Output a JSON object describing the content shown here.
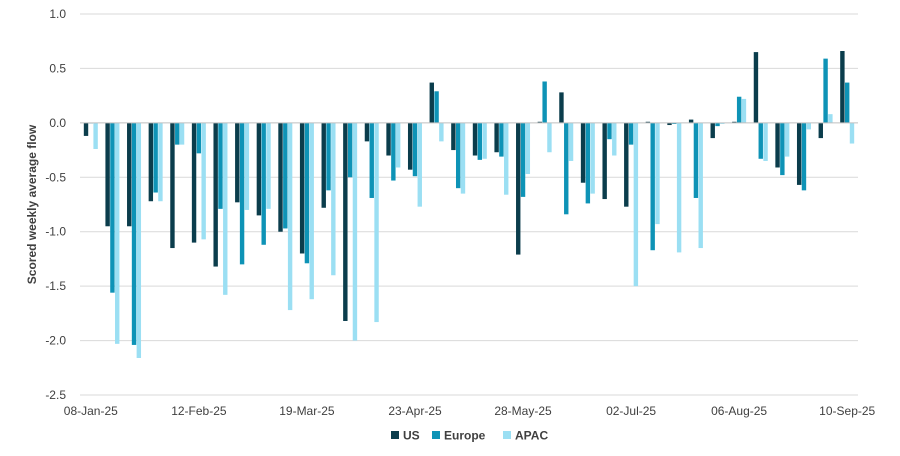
{
  "chart_data": {
    "type": "bar",
    "ylabel": "Scored weekly average flow",
    "ylim": [
      -2.5,
      1.0
    ],
    "yticks": [
      "1.0",
      "0.5",
      "0.0",
      "-0.5",
      "-1.0",
      "-1.5",
      "-2.0",
      "-2.5"
    ],
    "ytick_values": [
      1.0,
      0.5,
      0.0,
      -0.5,
      -1.0,
      -1.5,
      -2.0,
      -2.5
    ],
    "grid": true,
    "legend_position": "bottom",
    "x": [
      "08-Jan-25",
      "15-Jan-25",
      "22-Jan-25",
      "29-Jan-25",
      "05-Feb-25",
      "12-Feb-25",
      "19-Feb-25",
      "26-Feb-25",
      "05-Mar-25",
      "12-Mar-25",
      "19-Mar-25",
      "26-Mar-25",
      "02-Apr-25",
      "09-Apr-25",
      "16-Apr-25",
      "23-Apr-25",
      "30-Apr-25",
      "07-May-25",
      "14-May-25",
      "21-May-25",
      "28-May-25",
      "04-Jun-25",
      "11-Jun-25",
      "18-Jun-25",
      "25-Jun-25",
      "02-Jul-25",
      "09-Jul-25",
      "16-Jul-25",
      "23-Jul-25",
      "30-Jul-25",
      "06-Aug-25",
      "13-Aug-25",
      "20-Aug-25",
      "27-Aug-25",
      "03-Sep-25",
      "10-Sep-25"
    ],
    "x_tick_labels": [
      "08-Jan-25",
      "12-Feb-25",
      "19-Mar-25",
      "23-Apr-25",
      "28-May-25",
      "02-Jul-25",
      "06-Aug-25",
      "10-Sep-25"
    ],
    "series": [
      {
        "name": "US",
        "color": "#0b3d4c",
        "values": [
          -0.12,
          -0.95,
          -0.95,
          -0.72,
          -1.15,
          -1.1,
          -1.32,
          -0.73,
          -0.85,
          -1.0,
          -1.2,
          -0.78,
          -1.82,
          -0.17,
          -0.3,
          -0.43,
          0.37,
          -0.25,
          -0.3,
          -0.27,
          -1.21,
          0.01,
          0.28,
          -0.55,
          -0.7,
          -0.77,
          0.01,
          -0.02,
          0.03,
          -0.14,
          0.01,
          0.65,
          -0.41,
          -0.57,
          -0.14,
          0.66
        ]
      },
      {
        "name": "Europe",
        "color": "#0e93b6",
        "values": [
          0.0,
          -1.56,
          -2.04,
          -0.64,
          -0.2,
          -0.28,
          -0.79,
          -1.3,
          -1.12,
          -0.97,
          -1.29,
          -0.62,
          -0.5,
          -0.69,
          -0.53,
          -0.49,
          0.29,
          -0.6,
          -0.34,
          -0.31,
          -0.68,
          0.38,
          -0.84,
          -0.74,
          -0.15,
          -0.2,
          -1.17,
          -0.01,
          -0.69,
          -0.03,
          0.24,
          -0.33,
          -0.48,
          -0.62,
          0.59,
          0.37
        ]
      },
      {
        "name": "APAC",
        "color": "#9bdff3",
        "values": [
          -0.24,
          -2.03,
          -2.16,
          -0.72,
          -0.2,
          -1.07,
          -1.58,
          -0.8,
          -0.79,
          -1.72,
          -1.62,
          -1.4,
          -2.0,
          -1.83,
          -0.41,
          -0.77,
          -0.17,
          -0.65,
          -0.33,
          -0.66,
          -0.47,
          -0.27,
          -0.35,
          -0.65,
          -0.3,
          -1.5,
          -0.93,
          -1.19,
          -1.15,
          -0.01,
          0.22,
          -0.35,
          -0.31,
          -0.06,
          0.08,
          -0.19
        ]
      }
    ]
  }
}
